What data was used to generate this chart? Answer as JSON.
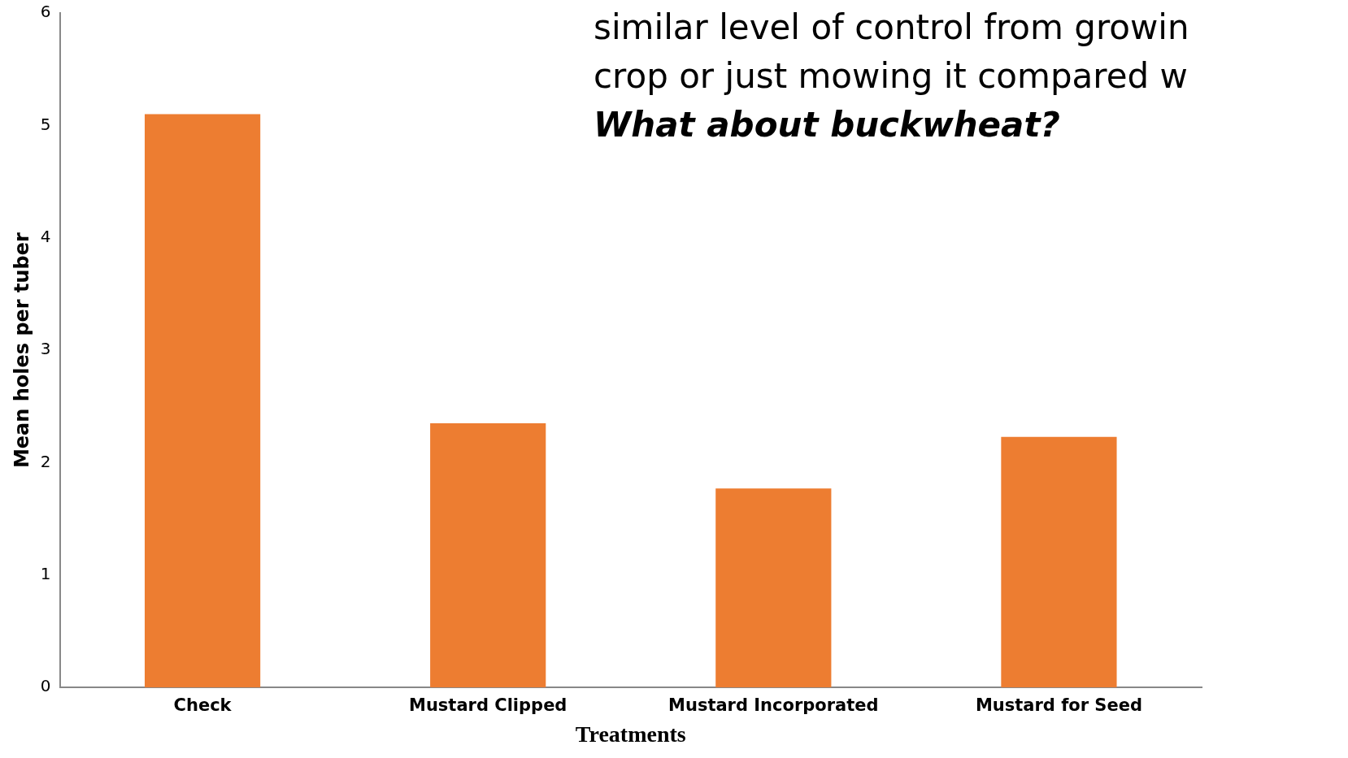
{
  "chart_data": {
    "type": "bar",
    "categories": [
      "Check",
      "Mustard Clipped",
      "Mustard Incorporated",
      "Mustard for Seed"
    ],
    "values": [
      5.1,
      2.35,
      1.77,
      2.23
    ],
    "color": "#ed7d31",
    "ylim": [
      0,
      6
    ],
    "yticks": [
      0,
      1,
      2,
      3,
      4,
      5,
      6
    ],
    "xlabel": "Treatments",
    "ylabel": "Mean holes per tuber",
    "grid": false,
    "legend": false,
    "annotations": [
      "similar level of control from growin",
      "crop or just mowing it compared w",
      "What about buckwheat?"
    ]
  }
}
